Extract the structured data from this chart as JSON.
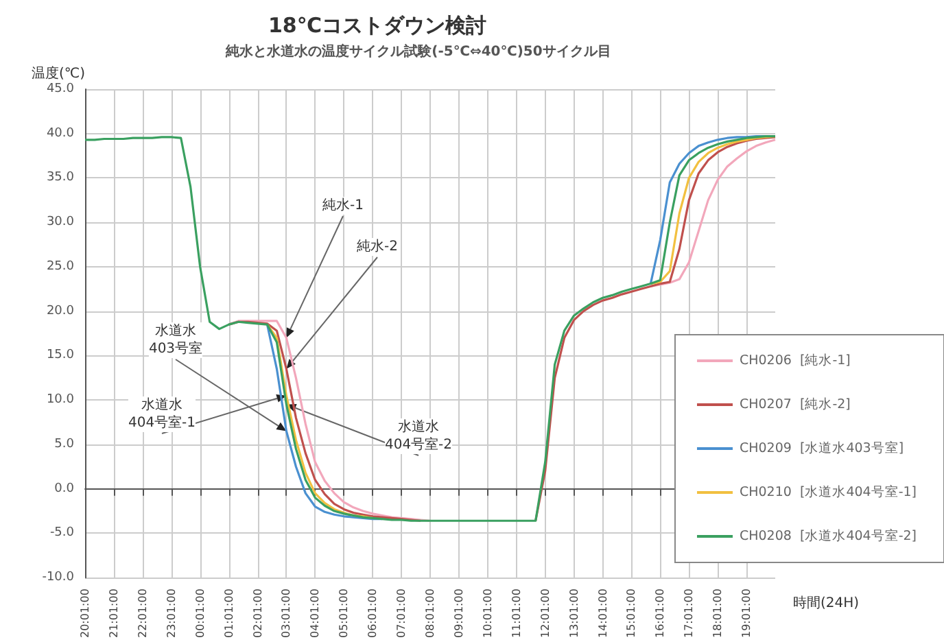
{
  "chart_data": {
    "type": "line",
    "title": "18℃コストダウン検討",
    "subtitle": "純水と水道水の温度サイクル試験(-5℃⇔40℃)50サイクル目",
    "xlabel": "時間(24H)",
    "ylabel": "温度(℃)",
    "categories": [
      "20:01:00",
      null,
      null,
      "21:01:00",
      null,
      null,
      "22:01:00",
      null,
      null,
      "23:01:00",
      null,
      null,
      "00:01:00",
      null,
      null,
      "01:01:00",
      null,
      null,
      "02:01:00",
      null,
      null,
      "03:01:00",
      null,
      null,
      "04:01:00",
      null,
      null,
      "05:01:00",
      null,
      null,
      "06:01:00",
      null,
      null,
      "07:01:00",
      null,
      null,
      "08:01:00",
      null,
      null,
      "09:01:00",
      null,
      null,
      "10:01:00",
      null,
      null,
      "11:01:00",
      null,
      null,
      "12:01:00",
      null,
      null,
      "13:01:00",
      null,
      null,
      "14:01:00",
      null,
      null,
      "15:01:00",
      null,
      null,
      "16:01:00",
      null,
      null,
      "17:01:00",
      null,
      null,
      "18:01:00",
      null,
      null,
      "19:01:00",
      null,
      null,
      null
    ],
    "ylim": [
      -10,
      45
    ],
    "yticks": [
      {
        "value": -10,
        "label": "-10.0"
      },
      {
        "value": -5,
        "label": "-5.0"
      },
      {
        "value": 0,
        "label": "0.0"
      },
      {
        "value": 5,
        "label": "5.0"
      },
      {
        "value": 10,
        "label": "10.0"
      },
      {
        "value": 15,
        "label": "15.0"
      },
      {
        "value": 20,
        "label": "20.0"
      },
      {
        "value": 25,
        "label": "25.0"
      },
      {
        "value": 30,
        "label": "30.0"
      },
      {
        "value": 35,
        "label": "35.0"
      },
      {
        "value": 40,
        "label": "40.0"
      },
      {
        "value": 45,
        "label": "45.0"
      }
    ],
    "grid": true,
    "legend": "bottom right",
    "marker": "none",
    "series": [
      {
        "name": "CH0206  [純水-1]",
        "color": "#f2a7bb",
        "values": [
          null,
          null,
          null,
          null,
          null,
          null,
          null,
          null,
          null,
          null,
          null,
          null,
          null,
          null,
          null,
          18.5,
          18.9,
          18.9,
          18.9,
          18.9,
          18.9,
          17,
          12.5,
          7.3,
          3,
          0.9,
          -0.5,
          -1.5,
          -2.1,
          -2.5,
          -2.8,
          -3.0,
          -3.2,
          -3.3,
          -3.4,
          -3.5,
          -3.6,
          null,
          null,
          null,
          null,
          null,
          null,
          null,
          null,
          null,
          null,
          null,
          null,
          null,
          null,
          null,
          null,
          null,
          null,
          null,
          null,
          null,
          null,
          22.8,
          23,
          23.2,
          23.6,
          25.5,
          29,
          32.5,
          34.8,
          36.3,
          37.2,
          38,
          38.6,
          39,
          39.3
        ]
      },
      {
        "name": "CH0207  [純水-2]",
        "color": "#c0504d",
        "values": [
          null,
          null,
          null,
          null,
          null,
          null,
          null,
          null,
          null,
          null,
          null,
          null,
          null,
          null,
          null,
          18.5,
          18.8,
          18.8,
          18.7,
          18.6,
          17.8,
          13.5,
          8,
          4,
          1,
          -0.6,
          -1.7,
          -2.3,
          -2.7,
          -2.9,
          -3.1,
          -3.2,
          -3.3,
          -3.4,
          -3.5,
          -3.6,
          null,
          null,
          null,
          null,
          null,
          null,
          null,
          null,
          null,
          null,
          null,
          -3.6,
          2,
          12.5,
          17,
          19,
          20,
          20.7,
          21.2,
          21.5,
          21.9,
          22.2,
          22.5,
          22.8,
          23.1,
          23.3,
          27,
          32.5,
          35.5,
          37,
          37.9,
          38.5,
          38.9,
          39.2,
          39.4,
          39.5,
          39.6
        ]
      },
      {
        "name": "CH0209  [水道水403号室]",
        "color": "#4a90d0",
        "values": [
          null,
          null,
          null,
          null,
          null,
          null,
          null,
          null,
          null,
          null,
          null,
          null,
          null,
          null,
          null,
          null,
          null,
          null,
          null,
          18.5,
          13.5,
          6.5,
          2.5,
          -0.5,
          -2,
          -2.6,
          -2.9,
          -3.1,
          -3.2,
          -3.3,
          -3.4,
          -3.4,
          null,
          null,
          null,
          null,
          null,
          null,
          null,
          null,
          null,
          null,
          null,
          null,
          null,
          null,
          null,
          null,
          null,
          null,
          null,
          null,
          null,
          null,
          null,
          null,
          null,
          null,
          null,
          23.1,
          28,
          34.5,
          36.6,
          37.8,
          38.6,
          39,
          39.3,
          39.5,
          39.6,
          39.6,
          39.7,
          39.7,
          null
        ]
      },
      {
        "name": "CH0210  [水道水404号室-1]",
        "color": "#f2c040",
        "values": [
          null,
          null,
          null,
          null,
          null,
          null,
          null,
          null,
          null,
          null,
          null,
          null,
          null,
          null,
          null,
          null,
          null,
          null,
          null,
          18.5,
          17,
          10.5,
          5.5,
          1.8,
          -0.5,
          -1.6,
          -2.3,
          -2.7,
          -3.0,
          -3.1,
          -3.3,
          null,
          null,
          null,
          null,
          null,
          null,
          null,
          null,
          null,
          null,
          null,
          null,
          null,
          null,
          null,
          null,
          null,
          null,
          null,
          null,
          null,
          null,
          null,
          null,
          null,
          null,
          null,
          null,
          23.1,
          23.3,
          24.5,
          31,
          35,
          36.8,
          37.8,
          38.4,
          38.8,
          39.1,
          39.3,
          39.5,
          39.6,
          39.7
        ]
      },
      {
        "name": "CH0208  [水道水404号室-2]",
        "color": "#3aa060",
        "values": [
          39.3,
          39.3,
          39.4,
          39.4,
          39.4,
          39.5,
          39.5,
          39.5,
          39.6,
          39.6,
          39.5,
          34,
          25,
          18.8,
          18.0,
          18.5,
          18.8,
          18.7,
          18.6,
          18.5,
          16.5,
          9.5,
          4.5,
          1,
          -1,
          -1.9,
          -2.5,
          -2.8,
          -3.0,
          -3.2,
          -3.3,
          -3.4,
          -3.5,
          -3.5,
          -3.6,
          -3.6,
          -3.6,
          -3.6,
          -3.6,
          -3.6,
          -3.6,
          -3.6,
          -3.6,
          -3.6,
          -3.6,
          -3.6,
          -3.6,
          -3.6,
          3,
          14,
          17.8,
          19.5,
          20.3,
          21,
          21.5,
          21.8,
          22.2,
          22.5,
          22.8,
          23.1,
          23.5,
          30,
          35.3,
          37,
          37.8,
          38.4,
          38.8,
          39.1,
          39.3,
          39.5,
          39.6,
          39.7,
          39.7
        ]
      }
    ],
    "annotations": [
      {
        "text": "純水-1",
        "x": "03:01:00",
        "y": 17
      },
      {
        "text": "純水-2",
        "x": "03:01:00",
        "y": 13.5
      },
      {
        "text": "水道水\n403号室",
        "x": "03:01:00",
        "y": 6.5
      },
      {
        "text": "水道水\n404号室-1",
        "x": "03:01:00",
        "y": 10.5
      },
      {
        "text": "水道水\n404号室-2",
        "x": "03:01:00",
        "y": 9.5
      }
    ]
  }
}
